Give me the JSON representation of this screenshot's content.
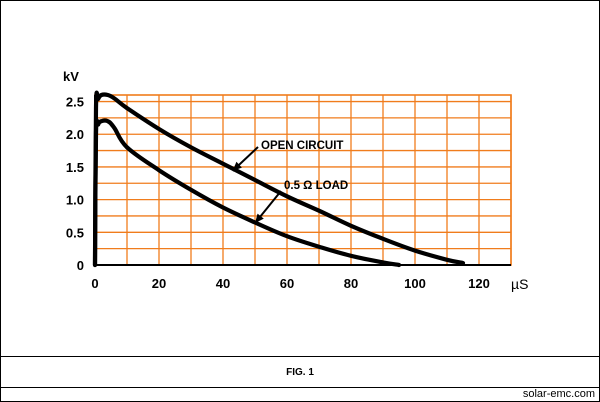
{
  "figure": {
    "caption": "FIG. 1",
    "source": "solar-emc.com"
  },
  "colors": {
    "grid": "#f07c1c",
    "curve": "#000000",
    "text": "#000000"
  },
  "chart_data": {
    "type": "line",
    "title": "",
    "xlabel": "µS",
    "ylabel": "kV",
    "xlim": [
      0,
      130
    ],
    "ylim": [
      0,
      2.6
    ],
    "grid": true,
    "x_ticks": [
      0,
      20,
      40,
      60,
      80,
      100,
      120
    ],
    "x_tick_labels": [
      "0",
      "20",
      "40",
      "60",
      "80",
      "100",
      "120"
    ],
    "y_ticks": [
      0,
      0.5,
      1.0,
      1.5,
      2.0,
      2.5
    ],
    "y_tick_labels": [
      "0",
      "0.5",
      "1.0",
      "1.5",
      "2.0",
      "2.5"
    ],
    "series": [
      {
        "name": "OPEN CIRCUIT",
        "x": [
          0,
          0.3,
          1,
          2,
          4,
          6,
          10,
          20,
          30,
          40,
          50,
          60,
          70,
          80,
          90,
          100,
          110,
          115
        ],
        "y": [
          0,
          2.4,
          2.54,
          2.6,
          2.6,
          2.55,
          2.4,
          2.08,
          1.8,
          1.55,
          1.3,
          1.05,
          0.83,
          0.6,
          0.4,
          0.22,
          0.08,
          0.03
        ]
      },
      {
        "name": "0.5 Ω LOAD",
        "x": [
          0,
          0.3,
          1,
          2,
          4,
          6,
          10,
          20,
          30,
          40,
          50,
          60,
          70,
          80,
          90,
          95
        ],
        "y": [
          0,
          2.0,
          2.15,
          2.2,
          2.2,
          2.1,
          1.8,
          1.45,
          1.15,
          0.88,
          0.65,
          0.44,
          0.28,
          0.14,
          0.04,
          0.0
        ]
      }
    ],
    "annotations": [
      {
        "text": "OPEN CIRCUIT",
        "points_to_series": "OPEN CIRCUIT"
      },
      {
        "text": "0.5 Ω LOAD",
        "points_to_series": "0.5 Ω LOAD"
      }
    ]
  }
}
